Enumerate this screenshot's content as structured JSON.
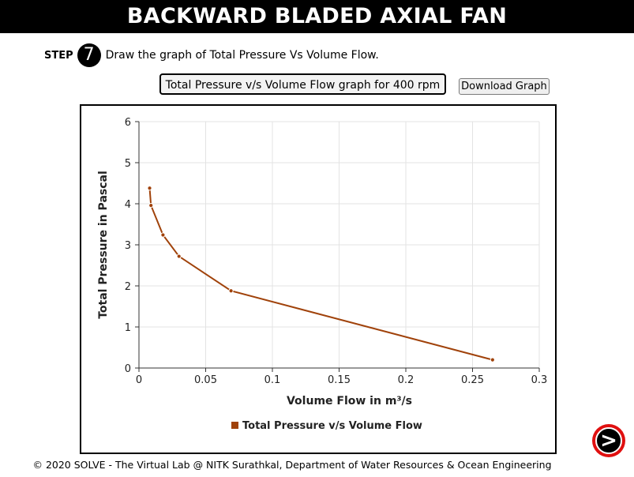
{
  "header": {
    "title": "BACKWARD BLADED AXIAL FAN"
  },
  "step": {
    "label": "STEP",
    "number": "7",
    "instruction": "Draw the graph of Total Pressure Vs Volume Flow."
  },
  "graph_title": "Total Pressure v/s Volume Flow graph for 400 rpm",
  "download_label": "Download Graph",
  "next_icon": "next-arrow-icon",
  "footer": "© 2020 SOLVE - The Virtual Lab @ NITK Surathkal, Department of Water Resources & Ocean Engineering",
  "colors": {
    "series": "#a0420a",
    "header_bg": "#000000",
    "next_outer": "#e01010"
  },
  "chart_data": {
    "type": "line",
    "xlabel": "Volume Flow in m³/s",
    "ylabel": "Total Pressure in Pascal",
    "xlim": [
      0,
      0.3
    ],
    "ylim": [
      0,
      6
    ],
    "xticks": [
      "0",
      "0.05",
      "0.1",
      "0.15",
      "0.2",
      "0.25",
      "0.3"
    ],
    "yticks": [
      "0",
      "1",
      "2",
      "3",
      "4",
      "5",
      "6"
    ],
    "grid": true,
    "legend_position": "bottom",
    "series": [
      {
        "name": "Total Pressure v/s Volume Flow",
        "color": "#a0420a",
        "x": [
          0.008,
          0.009,
          0.018,
          0.03,
          0.069,
          0.265
        ],
        "y": [
          4.38,
          3.96,
          3.24,
          2.72,
          1.88,
          0.2
        ]
      }
    ]
  }
}
